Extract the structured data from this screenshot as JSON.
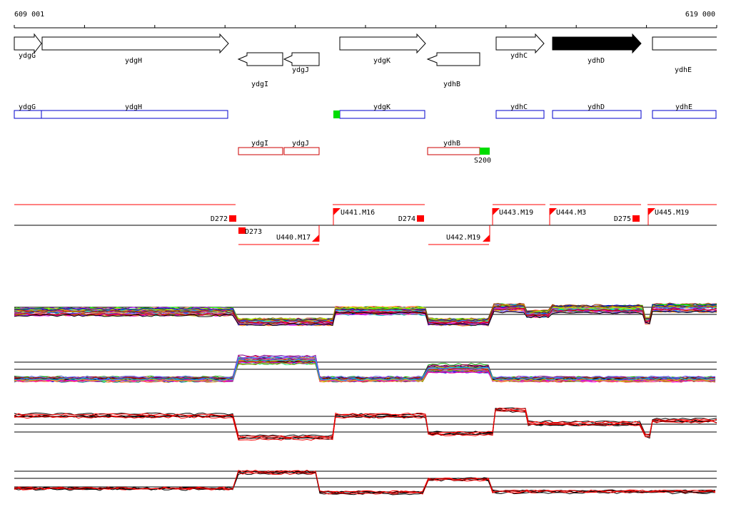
{
  "scale": {
    "start_label": "609 001",
    "end_label": "619 000"
  },
  "colors": {
    "gene_outline": "#000000",
    "gene_highlight": "#000000",
    "plus_feature": "#0000cc",
    "minus_feature": "#cc0000",
    "marker_green": "#00dd00",
    "segment_red": "#ff0000",
    "baseline": "#000000"
  },
  "genes": [
    {
      "name": "ydgG",
      "strand": "+",
      "highlighted": false
    },
    {
      "name": "ydgH",
      "strand": "+",
      "highlighted": false
    },
    {
      "name": "ydgI",
      "strand": "-",
      "highlighted": false
    },
    {
      "name": "ydgJ",
      "strand": "-",
      "highlighted": false
    },
    {
      "name": "ydgK",
      "strand": "+",
      "highlighted": false
    },
    {
      "name": "ydhB",
      "strand": "-",
      "highlighted": false
    },
    {
      "name": "ydhC",
      "strand": "+",
      "highlighted": false
    },
    {
      "name": "ydhD",
      "strand": "+",
      "highlighted": true
    },
    {
      "name": "ydhE",
      "strand": "+",
      "highlighted": false
    }
  ],
  "plus_features": [
    "ydgG",
    "ydgH",
    "ydgK",
    "ydhC",
    "ydhD",
    "ydhE"
  ],
  "minus_features": [
    "ydgI",
    "ydgJ",
    "ydhB"
  ],
  "markers": [
    {
      "label": "",
      "strand": "+"
    },
    {
      "label": "S200",
      "strand": "-"
    }
  ],
  "segments_top": [
    "D272",
    "U441.M16",
    "D274",
    "U443.M19",
    "U444.M3",
    "D275",
    "U445.M19"
  ],
  "segments_bottom": [
    "D273",
    "U440.M17",
    "U442.M19"
  ],
  "tracks": [
    {
      "id": "multi-1",
      "kind": "multicolor",
      "series_count": 40
    },
    {
      "id": "multi-2",
      "kind": "multicolor",
      "series_count": 40
    },
    {
      "id": "pair-1",
      "kind": "black-red",
      "series_count": 6
    },
    {
      "id": "pair-2",
      "kind": "black-red",
      "series_count": 6
    }
  ]
}
